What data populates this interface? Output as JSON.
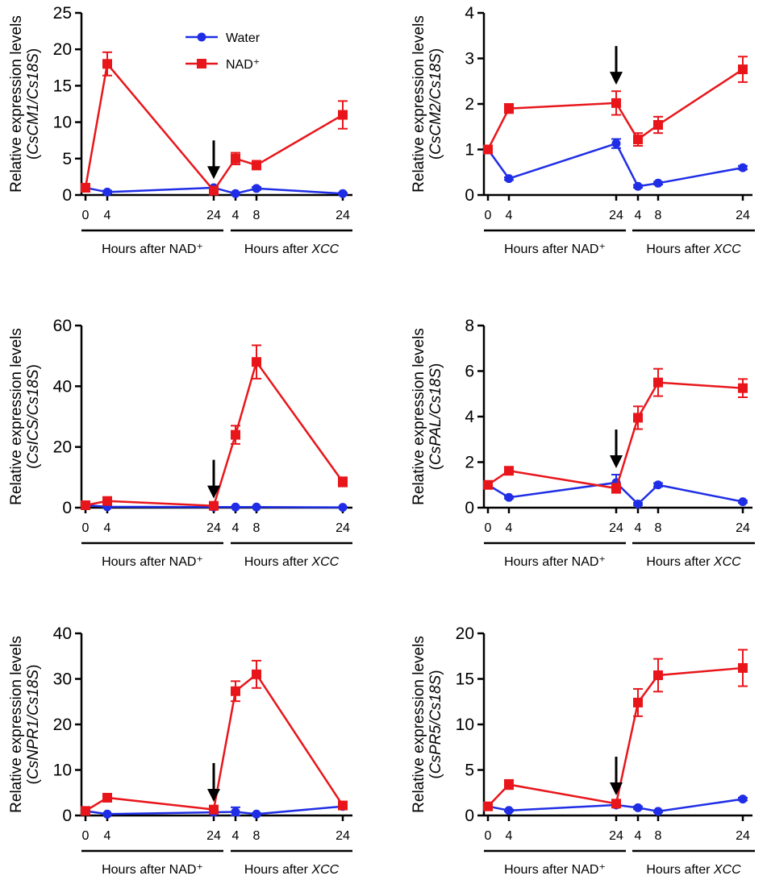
{
  "figure": {
    "y_axis_title": "Relative expression levels",
    "legend": [
      {
        "name": "Water",
        "color": "#1f2ee6",
        "marker": "circle"
      },
      {
        "name": "NAD⁺",
        "color": "#e8161b",
        "marker": "square"
      }
    ],
    "x_groups": [
      {
        "label": "Hours after NAD⁺",
        "italic_part": ""
      },
      {
        "label": "Hours after ",
        "italic_part": "XCC"
      }
    ],
    "x_tick_labels": [
      "0",
      "4",
      "24",
      "4",
      "8",
      "24"
    ],
    "arrow_annotation": "arrow marks XCC inoculation at 24 h after NAD⁺"
  },
  "chart_data": [
    {
      "type": "line",
      "gene": "CsCM1/Cs18S",
      "ylabel_prefix": "(",
      "ylabel_italic": "CsCM1/Cs18S",
      "ylabel_suffix": ")",
      "ylim": [
        0,
        25
      ],
      "yticks": [
        0,
        5,
        10,
        15,
        20,
        25
      ],
      "x_labels": [
        "0",
        "4",
        "24",
        "4",
        "8",
        "24"
      ],
      "series": [
        {
          "name": "Water",
          "values": [
            1.0,
            0.4,
            1.0,
            0.2,
            0.9,
            0.2
          ],
          "errors": [
            0.3,
            0.2,
            0.3,
            0.1,
            0.2,
            0.1
          ]
        },
        {
          "name": "NAD⁺",
          "values": [
            1.0,
            18.0,
            0.6,
            5.0,
            4.1,
            11.0
          ],
          "errors": [
            0.3,
            1.6,
            0.3,
            0.8,
            0.6,
            1.9
          ]
        }
      ],
      "show_legend": true,
      "arrow_x_index": 2
    },
    {
      "type": "line",
      "gene": "CsCM2/Cs18S",
      "ylabel_prefix": "(",
      "ylabel_italic": "CsCM2/Cs18S",
      "ylabel_suffix": ")",
      "ylim": [
        0,
        4
      ],
      "yticks": [
        0,
        1,
        2,
        3,
        4
      ],
      "x_labels": [
        "0",
        "4",
        "24",
        "4",
        "8",
        "24"
      ],
      "series": [
        {
          "name": "Water",
          "values": [
            1.0,
            0.36,
            1.13,
            0.19,
            0.26,
            0.6
          ],
          "errors": [
            0.05,
            0.03,
            0.1,
            0.03,
            0.03,
            0.04
          ]
        },
        {
          "name": "NAD⁺",
          "values": [
            1.0,
            1.9,
            2.02,
            1.22,
            1.54,
            2.76
          ],
          "errors": [
            0.05,
            0.1,
            0.26,
            0.14,
            0.18,
            0.28
          ]
        }
      ],
      "show_legend": false,
      "arrow_x_index": 2
    },
    {
      "type": "line",
      "gene": "CsICS/Cs18S",
      "ylabel_prefix": "(",
      "ylabel_italic": "CsICS/Cs18S",
      "ylabel_suffix": ")",
      "ylim": [
        0,
        60
      ],
      "yticks": [
        0,
        20,
        40,
        60
      ],
      "x_labels": [
        "0",
        "4",
        "24",
        "4",
        "8",
        "24"
      ],
      "series": [
        {
          "name": "Water",
          "values": [
            0.8,
            0.3,
            0.2,
            0.2,
            0.2,
            0.1
          ],
          "errors": [
            0.2,
            0.1,
            0.1,
            0.1,
            0.1,
            0.1
          ]
        },
        {
          "name": "NAD⁺",
          "values": [
            0.8,
            2.2,
            0.6,
            24.0,
            48.0,
            8.5
          ],
          "errors": [
            0.2,
            0.4,
            0.3,
            3.0,
            5.5,
            1.5
          ]
        }
      ],
      "show_legend": false,
      "arrow_x_index": 2
    },
    {
      "type": "line",
      "gene": "CsPAL/Cs18S",
      "ylabel_prefix": "(",
      "ylabel_italic": "CsPAL/Cs18S",
      "ylabel_suffix": ")",
      "ylim": [
        0,
        8
      ],
      "yticks": [
        0,
        2,
        4,
        6,
        8
      ],
      "x_labels": [
        "0",
        "4",
        "24",
        "4",
        "8",
        "24"
      ],
      "series": [
        {
          "name": "Water",
          "values": [
            1.0,
            0.45,
            1.1,
            0.16,
            1.0,
            0.26
          ],
          "errors": [
            0.08,
            0.05,
            0.35,
            0.05,
            0.08,
            0.05
          ]
        },
        {
          "name": "NAD⁺",
          "values": [
            1.0,
            1.62,
            0.85,
            3.95,
            5.5,
            5.25
          ],
          "errors": [
            0.08,
            0.1,
            0.2,
            0.5,
            0.6,
            0.4
          ]
        }
      ],
      "show_legend": false,
      "arrow_x_index": 2
    },
    {
      "type": "line",
      "gene": "CsNPR1/Cs18S",
      "ylabel_prefix": "(",
      "ylabel_italic": "CsNPR1/Cs18S",
      "ylabel_suffix": ")",
      "ylim": [
        0,
        40
      ],
      "yticks": [
        0,
        10,
        20,
        30,
        40
      ],
      "x_labels": [
        "0",
        "4",
        "24",
        "4",
        "8",
        "24"
      ],
      "series": [
        {
          "name": "Water",
          "values": [
            1.0,
            0.3,
            0.7,
            0.8,
            0.3,
            2.0
          ],
          "errors": [
            0.3,
            0.1,
            0.5,
            1.0,
            0.2,
            0.4
          ]
        },
        {
          "name": "NAD⁺",
          "values": [
            1.0,
            3.9,
            1.3,
            27.3,
            31.0,
            2.2
          ],
          "errors": [
            0.3,
            0.4,
            0.3,
            2.2,
            3.0,
            0.4
          ]
        }
      ],
      "show_legend": false,
      "arrow_x_index": 2
    },
    {
      "type": "line",
      "gene": "CsPR5/Cs18S",
      "ylabel_prefix": "(",
      "ylabel_italic": "CsPR5/Cs18S",
      "ylabel_suffix": ")",
      "ylim": [
        0,
        20
      ],
      "yticks": [
        0,
        5,
        10,
        15,
        20
      ],
      "x_labels": [
        "0",
        "4",
        "24",
        "4",
        "8",
        "24"
      ],
      "series": [
        {
          "name": "Water",
          "values": [
            1.0,
            0.55,
            1.15,
            0.85,
            0.45,
            1.8
          ],
          "errors": [
            0.1,
            0.1,
            0.15,
            0.15,
            0.1,
            0.15
          ]
        },
        {
          "name": "NAD⁺",
          "values": [
            1.0,
            3.4,
            1.3,
            12.4,
            15.4,
            16.2
          ],
          "errors": [
            0.1,
            0.5,
            0.2,
            1.5,
            1.8,
            2.0
          ]
        }
      ],
      "show_legend": false,
      "arrow_x_index": 2
    }
  ]
}
